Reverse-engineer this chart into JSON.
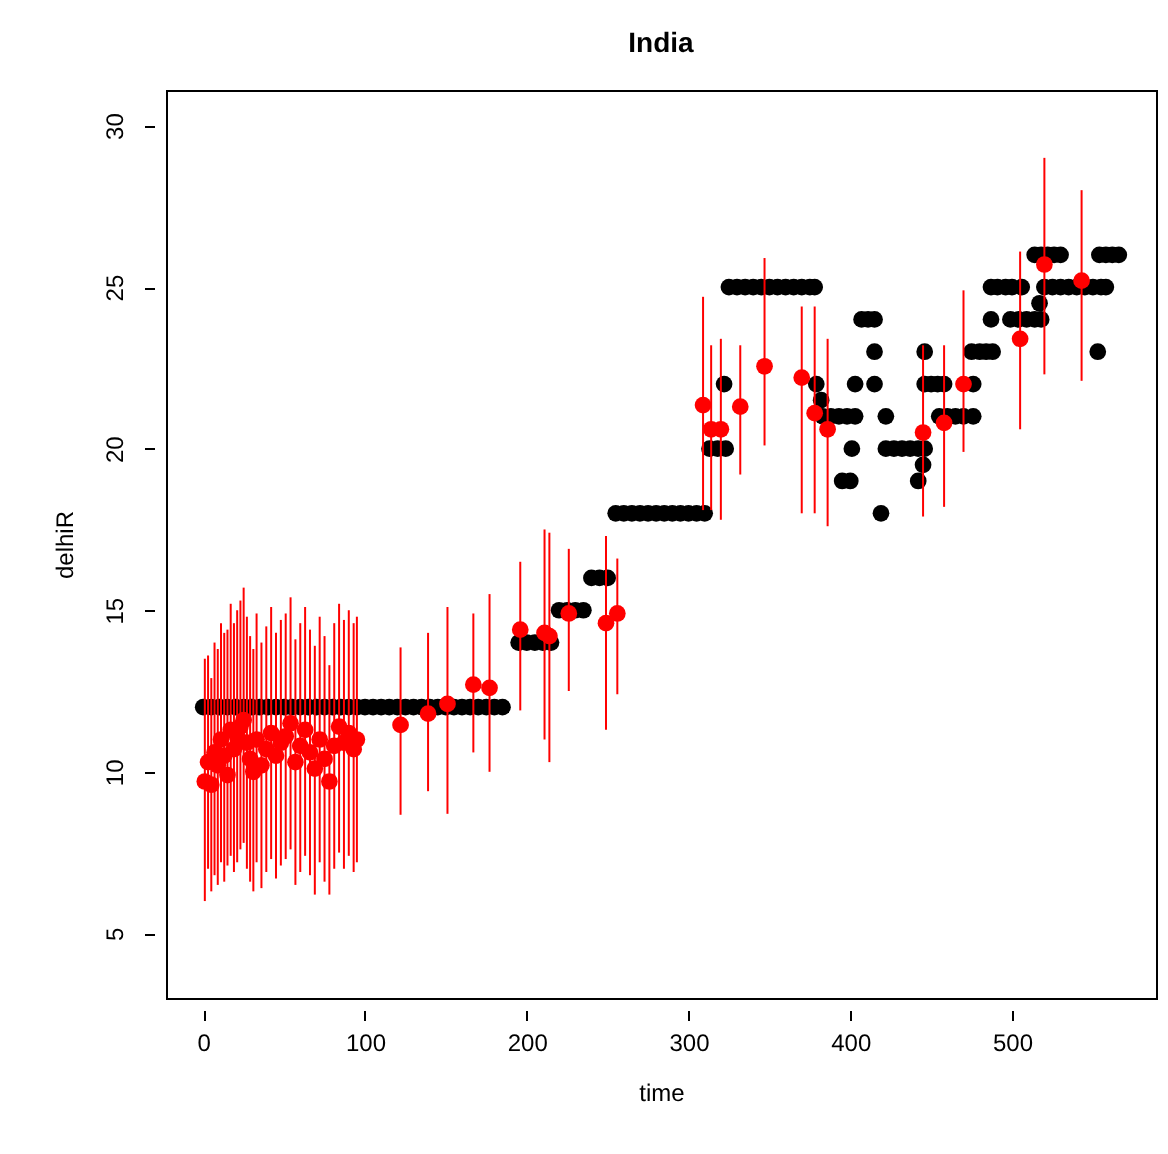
{
  "chart_data": {
    "type": "scatter",
    "title": "India",
    "xlabel": "time",
    "ylabel": "delhiR",
    "marker": "circle",
    "grid": false,
    "xlim": [
      -23,
      589
    ],
    "ylim": [
      3,
      31.1
    ],
    "xticks": [
      0,
      100,
      200,
      300,
      400,
      500
    ],
    "yticks": [
      5,
      10,
      15,
      20,
      25,
      30
    ],
    "series": [
      {
        "color": "#000000",
        "x": [
          0,
          5,
          10,
          15,
          20,
          25,
          30,
          35,
          40,
          45,
          50,
          55,
          60,
          65,
          70,
          75,
          80,
          85,
          90,
          95,
          100,
          105,
          110,
          115,
          120,
          125,
          130,
          135,
          140,
          145,
          150,
          155,
          160,
          165,
          170,
          175,
          180,
          185,
          195,
          200,
          205,
          210,
          215,
          220,
          225,
          230,
          235,
          240,
          245,
          250,
          255,
          260,
          265,
          270,
          275,
          280,
          285,
          290,
          295,
          300,
          305,
          310,
          313,
          318,
          323,
          322,
          325,
          330,
          335,
          340,
          345,
          350,
          355,
          360,
          365,
          370,
          375,
          378,
          379,
          382,
          383,
          388,
          393,
          398,
          403,
          395,
          400,
          401,
          403,
          407,
          411,
          415,
          415,
          415,
          419,
          422,
          422,
          427,
          432,
          437,
          442,
          446,
          445,
          442,
          446,
          446,
          450,
          454,
          458,
          455,
          460,
          465,
          470,
          476,
          476,
          475,
          480,
          484,
          488,
          487,
          487,
          491,
          496,
          500,
          499,
          504,
          509,
          514,
          518,
          506,
          517,
          514,
          518,
          522,
          526,
          530,
          520,
          525,
          530,
          535,
          540,
          545,
          550,
          555,
          558,
          553,
          554,
          558,
          562,
          566
        ],
        "values": [
          12,
          12,
          12,
          12,
          12,
          12,
          12,
          12,
          12,
          12,
          12,
          12,
          12,
          12,
          12,
          12,
          12,
          12,
          12,
          12,
          12,
          12,
          12,
          12,
          12,
          12,
          12,
          12,
          12,
          12,
          12,
          12,
          12,
          12,
          12,
          12,
          12,
          12,
          14,
          14,
          14,
          14,
          14,
          15,
          15,
          15,
          15,
          16,
          16,
          16,
          18,
          18,
          18,
          18,
          18,
          18,
          18,
          18,
          18,
          18,
          18,
          18,
          20,
          20,
          20,
          22,
          25,
          25,
          25,
          25,
          25,
          25,
          25,
          25,
          25,
          25,
          25,
          25,
          22,
          21.5,
          21,
          21,
          21,
          21,
          21,
          19,
          19,
          20,
          22,
          24,
          24,
          24,
          23,
          22,
          18,
          21,
          20,
          20,
          20,
          20,
          20,
          20,
          19.5,
          19,
          23,
          22,
          22,
          22,
          22,
          21,
          21,
          21,
          21,
          21,
          22,
          23,
          23,
          23,
          23,
          24,
          25,
          25,
          25,
          25,
          24,
          24,
          24,
          24,
          24,
          25,
          24.5,
          26,
          26,
          26,
          26,
          26,
          25,
          25,
          25,
          25,
          25,
          25,
          25,
          25,
          25,
          23,
          26,
          26,
          26,
          26
        ]
      },
      {
        "color": "#ff0000",
        "x": [
          1,
          3,
          5,
          7,
          9,
          11,
          13,
          15,
          17,
          19,
          21,
          23,
          25,
          27,
          29,
          31,
          33,
          36,
          39,
          42,
          45,
          48,
          51,
          54,
          57,
          60,
          63,
          66,
          69,
          72,
          75,
          78,
          81,
          84,
          87,
          90,
          93,
          95,
          122,
          139,
          151,
          167,
          177,
          196,
          211,
          214,
          226,
          249,
          256,
          309,
          314,
          320,
          332,
          347,
          370,
          378,
          386,
          445,
          458,
          470,
          505,
          520,
          543
        ],
        "values": [
          9.7,
          10.3,
          9.6,
          10.6,
          10.2,
          11.0,
          10.5,
          9.9,
          11.3,
          10.7,
          11.1,
          11.4,
          11.6,
          10.9,
          10.4,
          10.0,
          11.0,
          10.2,
          10.7,
          11.2,
          10.5,
          10.9,
          11.1,
          11.5,
          10.3,
          10.8,
          11.3,
          10.6,
          10.1,
          11.0,
          10.4,
          9.7,
          10.8,
          11.4,
          10.9,
          11.2,
          10.7,
          11.0,
          11.45,
          11.8,
          12.1,
          12.7,
          12.6,
          14.4,
          14.3,
          14.2,
          14.9,
          14.6,
          14.9,
          21.35,
          20.6,
          20.6,
          21.3,
          22.55,
          22.2,
          21.1,
          20.6,
          20.5,
          20.8,
          22.0,
          23.4,
          25.7,
          25.2
        ],
        "errors": [
          [
            6.0,
            13.5
          ],
          [
            7.0,
            13.6
          ],
          [
            6.3,
            12.9
          ],
          [
            6.8,
            14.0
          ],
          [
            6.5,
            13.8
          ],
          [
            7.2,
            14.6
          ],
          [
            6.6,
            14.3
          ],
          [
            7.1,
            14.4
          ],
          [
            7.4,
            15.2
          ],
          [
            6.9,
            14.6
          ],
          [
            7.2,
            15.0
          ],
          [
            7.6,
            15.3
          ],
          [
            7.8,
            15.7
          ],
          [
            7.0,
            14.8
          ],
          [
            6.6,
            14.2
          ],
          [
            6.3,
            13.8
          ],
          [
            7.2,
            14.9
          ],
          [
            6.4,
            14.0
          ],
          [
            6.9,
            14.5
          ],
          [
            7.3,
            15.1
          ],
          [
            6.7,
            14.3
          ],
          [
            7.1,
            14.7
          ],
          [
            7.3,
            14.9
          ],
          [
            7.6,
            15.4
          ],
          [
            6.5,
            14.1
          ],
          [
            6.9,
            14.6
          ],
          [
            7.4,
            15.1
          ],
          [
            6.8,
            14.4
          ],
          [
            6.2,
            13.9
          ],
          [
            7.2,
            14.8
          ],
          [
            6.6,
            14.2
          ],
          [
            6.2,
            13.3
          ],
          [
            7.0,
            14.6
          ],
          [
            7.5,
            15.2
          ],
          [
            7.0,
            14.7
          ],
          [
            7.4,
            15.0
          ],
          [
            6.9,
            14.6
          ],
          [
            7.2,
            14.8
          ],
          [
            8.67,
            13.85
          ],
          [
            9.4,
            14.3
          ],
          [
            8.7,
            15.1
          ],
          [
            10.6,
            14.9
          ],
          [
            10.0,
            15.5
          ],
          [
            11.9,
            16.5
          ],
          [
            11.0,
            17.5
          ],
          [
            10.3,
            17.4
          ],
          [
            12.5,
            16.9
          ],
          [
            11.3,
            17.3
          ],
          [
            12.4,
            16.6
          ],
          [
            18.1,
            24.7
          ],
          [
            18.1,
            23.2
          ],
          [
            17.8,
            23.4
          ],
          [
            19.2,
            23.2
          ],
          [
            20.1,
            25.9
          ],
          [
            18.0,
            24.4
          ],
          [
            18.0,
            24.4
          ],
          [
            17.6,
            23.4
          ],
          [
            17.9,
            23.2
          ],
          [
            18.2,
            23.2
          ],
          [
            19.9,
            24.9
          ],
          [
            20.6,
            26.1
          ],
          [
            22.3,
            29.0
          ],
          [
            22.1,
            28.0
          ]
        ]
      }
    ]
  }
}
